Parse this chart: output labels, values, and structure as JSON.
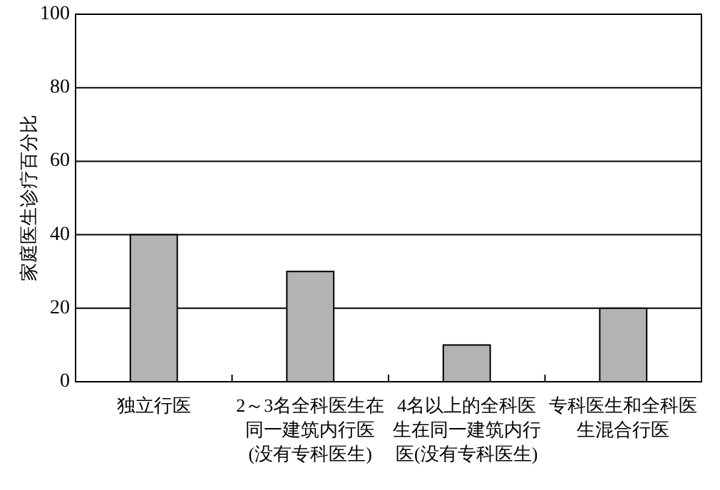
{
  "chart_data": {
    "type": "bar",
    "ylabel": "家庭医生诊疗百分比",
    "categories": [
      "独立行医",
      "2～3名全科医生在同一建筑内行医(没有专科医生)",
      "4名以上的全科医生在同一建筑内行医(没有专科医生)",
      "专科医生和全科医生混合行医"
    ],
    "values": [
      40,
      30,
      10,
      20
    ],
    "color": "#b3b3b3",
    "ylim": [
      0,
      100
    ],
    "yticks": [
      0,
      20,
      40,
      60,
      80,
      100
    ],
    "grid": "y"
  }
}
